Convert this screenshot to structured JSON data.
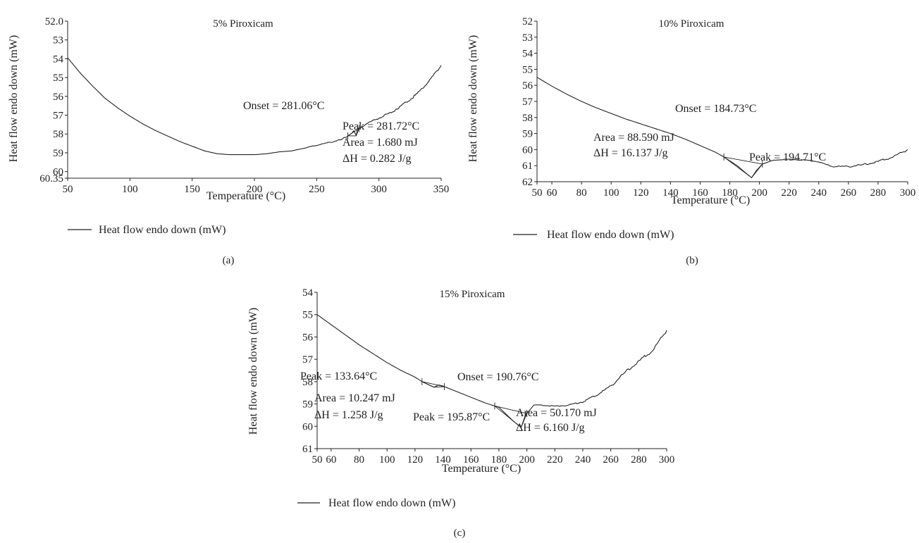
{
  "chart_data": [
    {
      "id": "a",
      "type": "line",
      "panel_label": "(a)",
      "title": "5% Piroxicam",
      "xlabel": "Temperature (°C)",
      "ylabel": "Heat flow endo down (mW)",
      "xlim": [
        50,
        350
      ],
      "ylim": [
        52.0,
        60.35
      ],
      "y_inverted": true,
      "xticks": [
        50,
        100,
        150,
        200,
        250,
        300,
        350
      ],
      "yticks": [
        52.0,
        53,
        54,
        55,
        56,
        57,
        58,
        59,
        60,
        60.35
      ],
      "ytick_labels": [
        "52.0",
        "53",
        "54",
        "55",
        "56",
        "57",
        "58",
        "59",
        "60",
        "60.35"
      ],
      "legend": "Heat flow endo down (mW)",
      "grid": false,
      "series": [
        {
          "x": [
            50,
            60,
            70,
            80,
            90,
            100,
            110,
            120,
            130,
            140,
            150,
            160,
            170,
            180,
            190,
            200,
            210,
            220,
            230,
            240,
            250,
            260,
            270,
            275,
            280,
            281.72,
            283,
            290,
            300,
            310,
            320,
            330,
            340,
            345,
            350
          ],
          "y": [
            53.95,
            54.75,
            55.45,
            56.1,
            56.6,
            57.05,
            57.45,
            57.8,
            58.1,
            58.4,
            58.65,
            58.9,
            59.05,
            59.1,
            59.1,
            59.1,
            59.05,
            58.95,
            58.9,
            58.75,
            58.6,
            58.45,
            58.3,
            58.1,
            57.85,
            58.1,
            57.75,
            57.45,
            57.15,
            56.85,
            56.4,
            55.9,
            55.2,
            54.8,
            54.35
          ]
        }
      ],
      "annotations": [
        "Onset = 281.06°C",
        "Peak = 281.72°C",
        "Area = 1.680 mJ",
        "ΔH = 0.282 J/g"
      ]
    },
    {
      "id": "b",
      "type": "line",
      "panel_label": "(b)",
      "title": "10% Piroxicam",
      "xlabel": "Temperature (°C)",
      "ylabel": "Heat flow endo down (mW)",
      "xlim": [
        50,
        300
      ],
      "ylim": [
        52,
        62
      ],
      "y_inverted": true,
      "xticks": [
        50,
        60,
        80,
        100,
        120,
        140,
        160,
        180,
        200,
        220,
        240,
        260,
        280,
        300
      ],
      "yticks": [
        52,
        53,
        54,
        55,
        56,
        57,
        58,
        59,
        60,
        61,
        62
      ],
      "legend": "Heat flow endo down (mW)",
      "grid": false,
      "series": [
        {
          "x": [
            50,
            60,
            70,
            80,
            90,
            100,
            110,
            120,
            130,
            140,
            150,
            160,
            170,
            175,
            180,
            185,
            190,
            194.71,
            198,
            202,
            210,
            220,
            230,
            240,
            245,
            250,
            260,
            270,
            280,
            290,
            300
          ],
          "y": [
            55.5,
            56.05,
            56.55,
            57.0,
            57.4,
            57.75,
            58.1,
            58.4,
            58.7,
            59.0,
            59.35,
            59.75,
            60.15,
            60.4,
            60.7,
            61.0,
            61.4,
            61.75,
            61.3,
            60.9,
            60.65,
            60.6,
            60.65,
            60.75,
            60.95,
            61.05,
            61.05,
            60.95,
            60.75,
            60.45,
            60.0
          ]
        }
      ],
      "annotations": [
        "Onset = 184.73°C",
        "Area = 88.590 mJ",
        "ΔH = 16.137 J/g",
        "Peak = 194.71°C"
      ]
    },
    {
      "id": "c",
      "type": "line",
      "panel_label": "(c)",
      "title": "15% Piroxicam",
      "xlabel": "Temperature (°C)",
      "ylabel": "Heat flow endo down (mW)",
      "xlim": [
        50,
        300
      ],
      "ylim": [
        54,
        61
      ],
      "y_inverted": true,
      "xticks": [
        50,
        60,
        80,
        100,
        120,
        140,
        160,
        180,
        200,
        220,
        240,
        260,
        280,
        300
      ],
      "yticks": [
        54,
        55,
        56,
        57,
        58,
        59,
        60,
        61
      ],
      "legend": "Heat flow endo down (mW)",
      "grid": false,
      "series": [
        {
          "x": [
            50,
            60,
            70,
            80,
            90,
            100,
            110,
            120,
            125,
            130,
            133.64,
            137,
            140,
            150,
            160,
            170,
            180,
            185,
            190,
            195.87,
            199,
            205,
            210,
            220,
            230,
            240,
            250,
            260,
            270,
            280,
            290,
            300
          ],
          "y": [
            55.0,
            55.45,
            55.9,
            56.35,
            56.75,
            57.15,
            57.5,
            57.8,
            58.0,
            58.15,
            58.25,
            58.15,
            58.2,
            58.45,
            58.7,
            58.95,
            59.15,
            59.45,
            59.75,
            60.05,
            59.5,
            59.05,
            59.05,
            59.1,
            59.05,
            58.9,
            58.6,
            58.2,
            57.6,
            57.1,
            56.6,
            55.7
          ]
        }
      ],
      "annotations": [
        "Peak = 133.64°C",
        "Onset = 190.76°C",
        "Area = 10.247 mJ",
        "ΔH = 1.258 J/g",
        "Peak = 195.87°C",
        "Area = 50.170 mJ",
        "ΔH = 6.160 J/g"
      ]
    }
  ]
}
